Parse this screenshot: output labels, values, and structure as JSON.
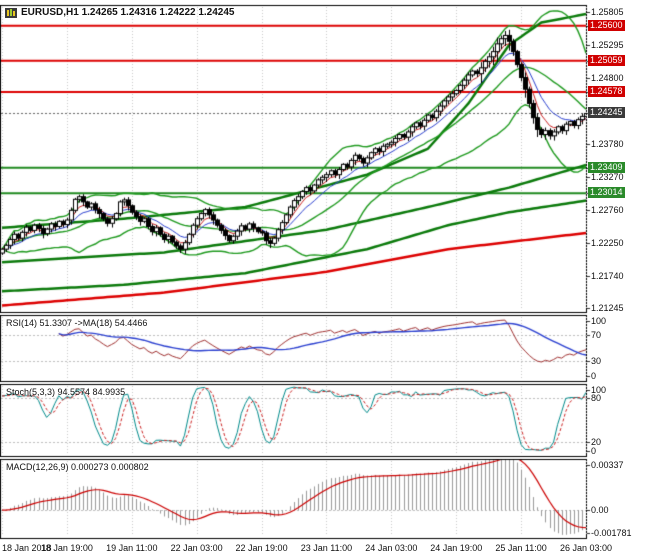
{
  "window": {
    "title": "EURUSD,H1 1.24265 1.24316 1.24222 1.24245"
  },
  "chart_data": {
    "type": "candlestick",
    "symbol": "EURUSD",
    "timeframe": "H1",
    "quote": {
      "open": "1.24265",
      "high": "1.24316",
      "low": "1.24222",
      "close": "1.24245"
    },
    "x_labels": [
      "18 Jan 2018",
      "18 Jan 19:00",
      "19 Jan 11:00",
      "22 Jan 03:00",
      "22 Jan 19:00",
      "23 Jan 11:00",
      "24 Jan 03:00",
      "24 Jan 19:00",
      "25 Jan 11:00",
      "26 Jan 03:00"
    ],
    "bars_per_label": 16,
    "closes": [
      1.2215,
      1.2221,
      1.223,
      1.2238,
      1.2232,
      1.2241,
      1.2249,
      1.2244,
      1.2252,
      1.2247,
      1.2239,
      1.2246,
      1.2254,
      1.225,
      1.2258,
      1.2253,
      1.226,
      1.2275,
      1.2292,
      1.2296,
      1.2288,
      1.228,
      1.2285,
      1.2276,
      1.227,
      1.2262,
      1.2255,
      1.2262,
      1.227,
      1.2288,
      1.2291,
      1.2282,
      1.2272,
      1.2265,
      1.2258,
      1.2262,
      1.225,
      1.2242,
      1.2248,
      1.2238,
      1.223,
      1.2235,
      1.2226,
      1.222,
      1.2215,
      1.2225,
      1.2238,
      1.2252,
      1.2262,
      1.227,
      1.2276,
      1.2268,
      1.226,
      1.2252,
      1.2244,
      1.2236,
      1.2228,
      1.2235,
      1.2243,
      1.2251,
      1.2246,
      1.2254,
      1.2248,
      1.2242,
      1.224,
      1.2228,
      1.2224,
      1.2232,
      1.2245,
      1.2256,
      1.2268,
      1.228,
      1.229,
      1.2296,
      1.2304,
      1.231,
      1.2305,
      1.2314,
      1.2322,
      1.2326,
      1.233,
      1.2336,
      1.233,
      1.2338,
      1.2346,
      1.2342,
      1.2352,
      1.236,
      1.2355,
      1.2348,
      1.2356,
      1.2364,
      1.237,
      1.2366,
      1.2374,
      1.2377,
      1.238,
      1.2386,
      1.2392,
      1.2388,
      1.2396,
      1.2404,
      1.241,
      1.2405,
      1.2414,
      1.2422,
      1.2418,
      1.2428,
      1.2436,
      1.2444,
      1.245,
      1.2455,
      1.246,
      1.2468,
      1.2476,
      1.2484,
      1.249,
      1.2486,
      1.2495,
      1.2505,
      1.2512,
      1.252,
      1.2532,
      1.254,
      1.2545,
      1.2536,
      1.252,
      1.25,
      1.248,
      1.2462,
      1.244,
      1.2418,
      1.24,
      1.2392,
      1.2398,
      1.239,
      1.2396,
      1.2404,
      1.2398,
      1.2408,
      1.2412,
      1.2406,
      1.2415,
      1.242,
      1.24245
    ],
    "price_axis": {
      "range": [
        1.2118,
        1.2592
      ],
      "ticks": [
        "1.25805",
        "1.25295",
        "1.24800",
        "1.23780",
        "1.23270",
        "1.22760",
        "1.22250",
        "1.21740",
        "1.21245"
      ]
    },
    "badges": [
      {
        "text": "1.25600",
        "value": 1.256,
        "kind": "res"
      },
      {
        "text": "1.25059",
        "value": 1.25059,
        "kind": "res"
      },
      {
        "text": "1.24578",
        "value": 1.24578,
        "kind": "res"
      },
      {
        "text": "1.24245",
        "value": 1.24245,
        "kind": "cur"
      },
      {
        "text": "1.23409",
        "value": 1.23409,
        "kind": "sup"
      },
      {
        "text": "1.23014",
        "value": 1.23014,
        "kind": "sup"
      }
    ],
    "overlays": {
      "outer_upper_anchors": [
        [
          0,
          1.2248
        ],
        [
          30,
          1.2262
        ],
        [
          60,
          1.228
        ],
        [
          90,
          1.233
        ],
        [
          105,
          1.237
        ],
        [
          115,
          1.244
        ],
        [
          125,
          1.253
        ],
        [
          133,
          1.2565
        ],
        [
          144,
          1.2578
        ]
      ],
      "outer_mid_anchors": [
        [
          0,
          1.2195
        ],
        [
          40,
          1.221
        ],
        [
          80,
          1.2245
        ],
        [
          105,
          1.228
        ],
        [
          125,
          1.231
        ],
        [
          144,
          1.2345
        ]
      ],
      "outer_lower_anchors": [
        [
          0,
          1.215
        ],
        [
          30,
          1.216
        ],
        [
          60,
          1.2178
        ],
        [
          90,
          1.2215
        ],
        [
          110,
          1.2252
        ],
        [
          125,
          1.2272
        ],
        [
          144,
          1.229
        ]
      ],
      "red_ma_anchors": [
        [
          0,
          1.2128
        ],
        [
          40,
          1.2148
        ],
        [
          80,
          1.218
        ],
        [
          110,
          1.2215
        ],
        [
          144,
          1.224
        ]
      ]
    },
    "indicators": [
      {
        "name": "RSI",
        "label": "RSI(14) 51.3307 ->MA(18) 54.4466",
        "range": [
          0,
          100
        ],
        "levels": [
          70,
          30
        ],
        "ticks": [
          "100",
          "70",
          "30",
          "0"
        ]
      },
      {
        "name": "Stochastic",
        "label": "Stoch(5,3,3) 94.5574 84.9935",
        "range": [
          0,
          100
        ],
        "levels": [
          80,
          20
        ],
        "ticks": [
          "100",
          "80",
          "20",
          "0"
        ]
      },
      {
        "name": "MACD",
        "label": "MACD(12,26,9) 0.000273 0.000802",
        "range": [
          -0.0019,
          0.0035
        ],
        "levels": [
          0
        ],
        "ticks": [
          "0.00337",
          "0.00",
          "-0.001781"
        ]
      }
    ],
    "colors": {
      "up_candle": "#ffffff",
      "down_candle": "#000000",
      "candle_border": "#000000",
      "bollinger": "#1f9a1f",
      "band_outer": "#0b7a0b",
      "ma_fast": "#cc2222",
      "ma_slow": "#2a3fd0",
      "resistance": "#dd0000",
      "support": "#1f8a1f",
      "current_line": "#666666",
      "grid": "#c9c9c9",
      "rsi_line": "#a03030",
      "rsi_ma": "#2a3fd0",
      "stoch_k": "#008b8b",
      "stoch_d": "#cc2222",
      "macd_hist": "#9a9a9a",
      "macd_signal": "#cc0000"
    }
  }
}
